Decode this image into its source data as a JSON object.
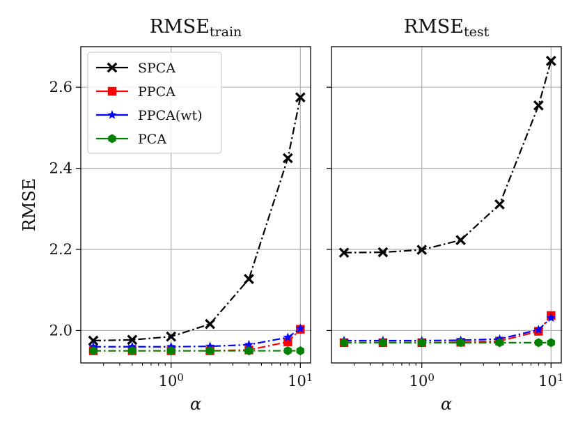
{
  "chart_data": [
    {
      "type": "line",
      "title": {
        "base": "RMSE",
        "sub": "train"
      },
      "xlabel": "α",
      "ylabel": "RMSE",
      "xscale": "log",
      "xlim": [
        0.2,
        12
      ],
      "ylim": [
        1.92,
        2.7
      ],
      "xticks": [
        {
          "value": 1,
          "base": "10",
          "exp": "0"
        },
        {
          "value": 10,
          "base": "10",
          "exp": "1"
        }
      ],
      "yticks": [
        {
          "value": 2.0,
          "label": "2.0"
        },
        {
          "value": 2.2,
          "label": "2.2"
        },
        {
          "value": 2.4,
          "label": "2.4"
        },
        {
          "value": 2.6,
          "label": "2.6"
        }
      ],
      "grid": true,
      "legend_position": "top-left",
      "x": [
        0.25,
        0.5,
        1,
        2,
        4,
        8,
        10
      ],
      "series": [
        {
          "name": "SPCA",
          "color": "#000000",
          "marker": "x",
          "values": [
            1.975,
            1.977,
            1.985,
            2.016,
            2.127,
            2.425,
            2.575
          ]
        },
        {
          "name": "PPCA",
          "color": "#ff0000",
          "marker": "square",
          "values": [
            1.95,
            1.95,
            1.95,
            1.95,
            1.952,
            1.972,
            2.003
          ]
        },
        {
          "name": "PPCA(wt)",
          "color": "#0000ff",
          "marker": "star",
          "values": [
            1.96,
            1.96,
            1.96,
            1.961,
            1.965,
            1.983,
            2.005
          ]
        },
        {
          "name": "PCA",
          "color": "#008000",
          "marker": "hexagon",
          "values": [
            1.95,
            1.95,
            1.95,
            1.95,
            1.95,
            1.95,
            1.95
          ]
        }
      ]
    },
    {
      "type": "line",
      "title": {
        "base": "RMSE",
        "sub": "test"
      },
      "xlabel": "α",
      "ylabel": "",
      "xscale": "log",
      "xlim": [
        0.2,
        12
      ],
      "ylim": [
        1.92,
        2.7
      ],
      "xticks": [
        {
          "value": 1,
          "base": "10",
          "exp": "0"
        },
        {
          "value": 10,
          "base": "10",
          "exp": "1"
        }
      ],
      "yticks": [],
      "grid": true,
      "x": [
        0.25,
        0.5,
        1,
        2,
        4,
        8,
        10
      ],
      "series": [
        {
          "name": "SPCA",
          "color": "#000000",
          "marker": "x",
          "values": [
            2.192,
            2.193,
            2.199,
            2.223,
            2.311,
            2.555,
            2.665
          ]
        },
        {
          "name": "PPCA",
          "color": "#ff0000",
          "marker": "square",
          "values": [
            1.97,
            1.97,
            1.97,
            1.971,
            1.974,
            1.998,
            2.037
          ]
        },
        {
          "name": "PPCA(wt)",
          "color": "#0000ff",
          "marker": "star",
          "values": [
            1.975,
            1.975,
            1.975,
            1.976,
            1.979,
            2.002,
            2.031
          ]
        },
        {
          "name": "PCA",
          "color": "#008000",
          "marker": "hexagon",
          "values": [
            1.97,
            1.97,
            1.97,
            1.97,
            1.97,
            1.97,
            1.97
          ]
        }
      ]
    }
  ]
}
